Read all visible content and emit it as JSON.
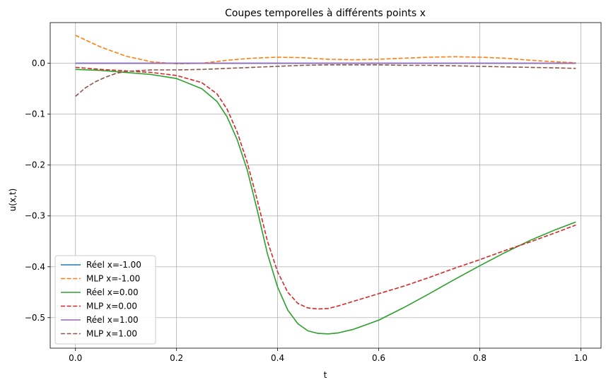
{
  "chart_data": {
    "type": "line",
    "title": "Coupes temporelles à différents points x",
    "xlabel": "t",
    "ylabel": "u(x,t)",
    "xlim": [
      -0.05,
      1.04
    ],
    "ylim": [
      -0.56,
      0.08
    ],
    "xticks": [
      0.0,
      0.2,
      0.4,
      0.6,
      0.8,
      1.0
    ],
    "xtick_labels": [
      "0.0",
      "0.2",
      "0.4",
      "0.6",
      "0.8",
      "1.0"
    ],
    "yticks": [
      0.0,
      -0.1,
      -0.2,
      -0.3,
      -0.4,
      -0.5
    ],
    "ytick_labels": [
      "0.0",
      "−0.1",
      "−0.2",
      "−0.3",
      "−0.4",
      "−0.5"
    ],
    "grid": true,
    "legend_position": "lower-left",
    "series": [
      {
        "name": "Réel x=-1.00",
        "color": "#1f77b4",
        "dash": "solid",
        "x": [
          0.0,
          0.99
        ],
        "y": [
          0.0,
          0.0
        ]
      },
      {
        "name": "MLP x=-1.00",
        "color": "#ff7f0e",
        "dash": "dashed",
        "x": [
          0.0,
          0.05,
          0.1,
          0.15,
          0.2,
          0.25,
          0.3,
          0.35,
          0.4,
          0.45,
          0.5,
          0.55,
          0.6,
          0.65,
          0.7,
          0.75,
          0.8,
          0.85,
          0.9,
          0.95,
          0.99
        ],
        "y": [
          0.055,
          0.032,
          0.014,
          0.003,
          -0.001,
          0.0,
          0.006,
          0.01,
          0.012,
          0.011,
          0.008,
          0.007,
          0.008,
          0.01,
          0.012,
          0.013,
          0.012,
          0.01,
          0.006,
          0.003,
          0.001
        ]
      },
      {
        "name": "Réel x=0.00",
        "color": "#2ca02c",
        "dash": "solid",
        "x": [
          0.0,
          0.05,
          0.1,
          0.15,
          0.2,
          0.25,
          0.28,
          0.3,
          0.32,
          0.34,
          0.36,
          0.38,
          0.4,
          0.42,
          0.44,
          0.46,
          0.48,
          0.5,
          0.52,
          0.55,
          0.6,
          0.65,
          0.7,
          0.75,
          0.8,
          0.85,
          0.9,
          0.95,
          0.99
        ],
        "y": [
          -0.012,
          -0.014,
          -0.018,
          -0.022,
          -0.03,
          -0.05,
          -0.075,
          -0.105,
          -0.15,
          -0.21,
          -0.29,
          -0.375,
          -0.44,
          -0.485,
          -0.512,
          -0.526,
          -0.531,
          -0.532,
          -0.53,
          -0.523,
          -0.505,
          -0.48,
          -0.453,
          -0.425,
          -0.398,
          -0.372,
          -0.348,
          -0.327,
          -0.312
        ]
      },
      {
        "name": "MLP x=0.00",
        "color": "#d62728",
        "dash": "dashed",
        "x": [
          0.0,
          0.05,
          0.1,
          0.15,
          0.2,
          0.25,
          0.28,
          0.3,
          0.32,
          0.34,
          0.36,
          0.38,
          0.4,
          0.42,
          0.44,
          0.46,
          0.48,
          0.5,
          0.52,
          0.55,
          0.6,
          0.65,
          0.7,
          0.75,
          0.8,
          0.85,
          0.9,
          0.95,
          0.99
        ],
        "y": [
          -0.008,
          -0.012,
          -0.015,
          -0.018,
          -0.024,
          -0.038,
          -0.06,
          -0.09,
          -0.135,
          -0.195,
          -0.27,
          -0.35,
          -0.41,
          -0.45,
          -0.472,
          -0.481,
          -0.483,
          -0.482,
          -0.477,
          -0.468,
          -0.453,
          -0.438,
          -0.421,
          -0.403,
          -0.386,
          -0.368,
          -0.351,
          -0.333,
          -0.318
        ]
      },
      {
        "name": "Réel x=1.00",
        "color": "#9467bd",
        "dash": "solid",
        "x": [
          0.0,
          0.99
        ],
        "y": [
          0.0,
          0.0
        ]
      },
      {
        "name": "MLP x=1.00",
        "color": "#8c564b",
        "dash": "dashed",
        "x": [
          0.0,
          0.02,
          0.04,
          0.06,
          0.08,
          0.1,
          0.15,
          0.2,
          0.25,
          0.3,
          0.35,
          0.4,
          0.45,
          0.5,
          0.55,
          0.6,
          0.65,
          0.7,
          0.75,
          0.8,
          0.85,
          0.9,
          0.95,
          0.99
        ],
        "y": [
          -0.065,
          -0.048,
          -0.036,
          -0.027,
          -0.02,
          -0.016,
          -0.013,
          -0.013,
          -0.012,
          -0.01,
          -0.008,
          -0.006,
          -0.004,
          -0.003,
          -0.003,
          -0.003,
          -0.004,
          -0.004,
          -0.005,
          -0.006,
          -0.007,
          -0.008,
          -0.009,
          -0.01
        ]
      }
    ]
  }
}
